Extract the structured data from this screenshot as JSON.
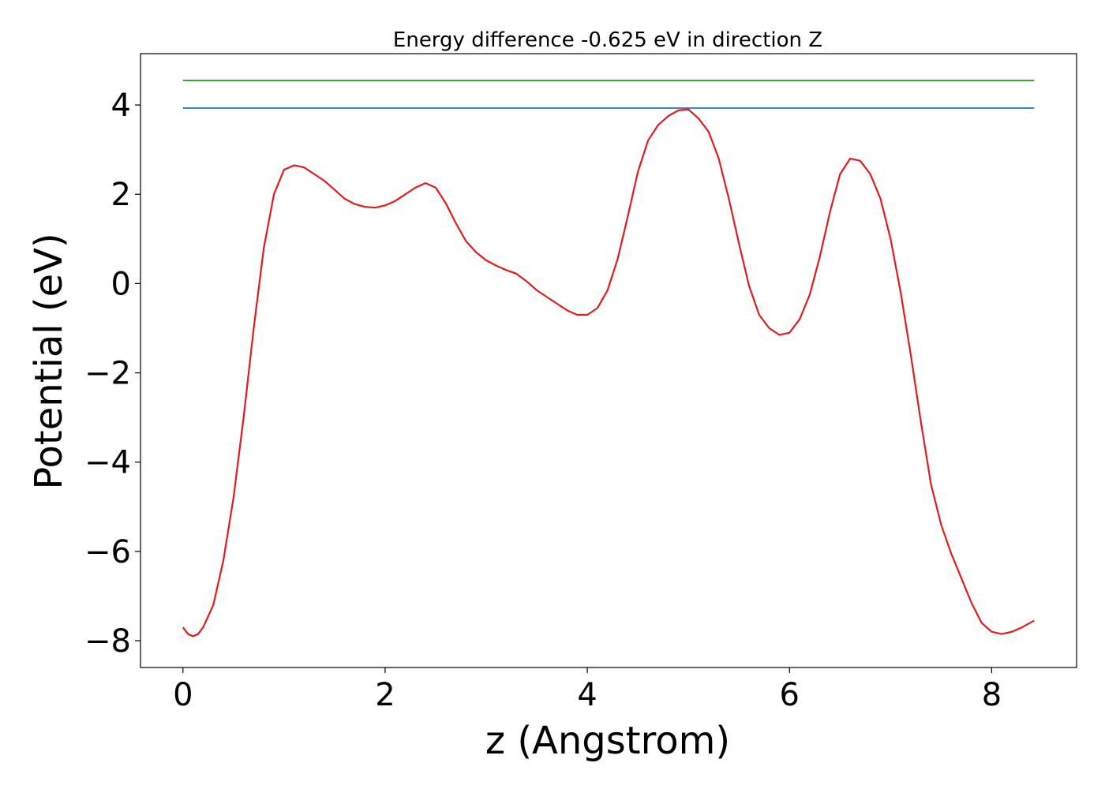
{
  "chart_data": {
    "type": "line",
    "title": "Energy difference -0.625 eV in direction Z",
    "xlabel": "z (Angstrom)",
    "ylabel": "Potential (eV)",
    "xlim": [
      -0.42,
      8.84
    ],
    "ylim": [
      -8.6,
      5.15
    ],
    "xticks": [
      0,
      2,
      4,
      6,
      8
    ],
    "xtick_labels": [
      "0",
      "2",
      "4",
      "6",
      "8"
    ],
    "yticks": [
      -8,
      -6,
      -4,
      -2,
      0,
      2,
      4
    ],
    "ytick_labels": [
      "−8",
      "−6",
      "−4",
      "−2",
      "0",
      "2",
      "4"
    ],
    "grid": false,
    "series": [
      {
        "color": "#2ca02c",
        "x": [
          0,
          8.42
        ],
        "y": [
          4.55,
          4.55
        ]
      },
      {
        "color": "#1f77b4",
        "x": [
          0,
          8.42
        ],
        "y": [
          3.93,
          3.93
        ]
      },
      {
        "color": "#e41a1c",
        "x": [
          0,
          0.05,
          0.1,
          0.15,
          0.2,
          0.3,
          0.4,
          0.5,
          0.6,
          0.7,
          0.8,
          0.9,
          1.0,
          1.1,
          1.2,
          1.3,
          1.4,
          1.5,
          1.6,
          1.7,
          1.8,
          1.9,
          2.0,
          2.1,
          2.2,
          2.3,
          2.4,
          2.5,
          2.6,
          2.7,
          2.8,
          2.9,
          3.0,
          3.1,
          3.2,
          3.3,
          3.4,
          3.5,
          3.6,
          3.7,
          3.8,
          3.9,
          4.0,
          4.1,
          4.2,
          4.3,
          4.4,
          4.5,
          4.6,
          4.7,
          4.8,
          4.9,
          5.0,
          5.1,
          5.2,
          5.3,
          5.4,
          5.5,
          5.6,
          5.7,
          5.8,
          5.9,
          6.0,
          6.1,
          6.2,
          6.3,
          6.4,
          6.5,
          6.6,
          6.7,
          6.8,
          6.9,
          7.0,
          7.1,
          7.2,
          7.3,
          7.4,
          7.5,
          7.6,
          7.7,
          7.8,
          7.9,
          8.0,
          8.1,
          8.2,
          8.3,
          8.42
        ],
        "y": [
          -7.7,
          -7.85,
          -7.9,
          -7.85,
          -7.7,
          -7.2,
          -6.2,
          -4.8,
          -3.0,
          -1.0,
          0.8,
          2.0,
          2.55,
          2.65,
          2.6,
          2.45,
          2.3,
          2.1,
          1.9,
          1.78,
          1.72,
          1.7,
          1.75,
          1.85,
          2.0,
          2.15,
          2.25,
          2.15,
          1.8,
          1.35,
          0.95,
          0.7,
          0.52,
          0.4,
          0.3,
          0.22,
          0.05,
          -0.15,
          -0.3,
          -0.45,
          -0.6,
          -0.7,
          -0.7,
          -0.55,
          -0.15,
          0.55,
          1.5,
          2.5,
          3.2,
          3.55,
          3.75,
          3.88,
          3.9,
          3.7,
          3.4,
          2.8,
          1.9,
          0.9,
          -0.05,
          -0.7,
          -1.0,
          -1.15,
          -1.1,
          -0.8,
          -0.25,
          0.6,
          1.6,
          2.45,
          2.8,
          2.75,
          2.45,
          1.9,
          1.0,
          -0.2,
          -1.6,
          -3.1,
          -4.5,
          -5.4,
          -6.05,
          -6.6,
          -7.15,
          -7.6,
          -7.8,
          -7.85,
          -7.8,
          -7.7,
          -7.55
        ]
      }
    ]
  }
}
